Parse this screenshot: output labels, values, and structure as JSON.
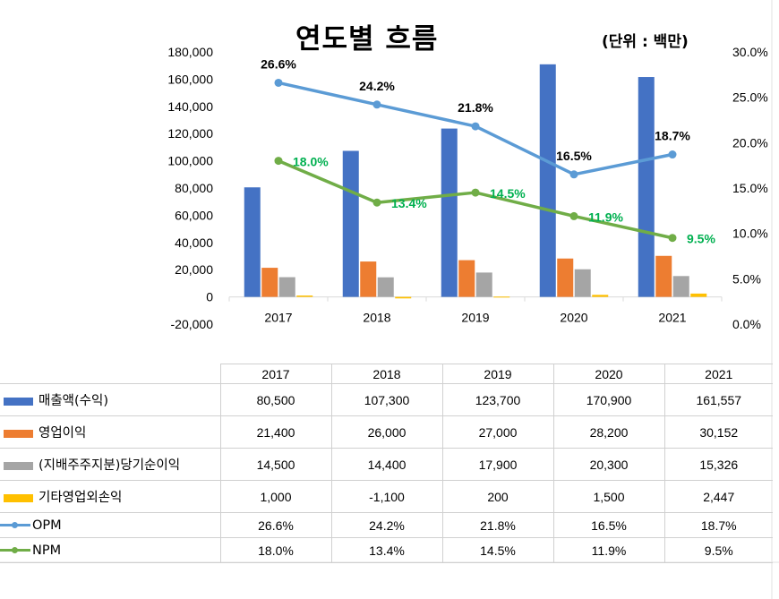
{
  "chart_data": {
    "type": "bar",
    "title": "연도별 흐름",
    "unit_note": "(단위 : 백만)",
    "categories": [
      "2017",
      "2018",
      "2019",
      "2020",
      "2021"
    ],
    "ylim": [
      -20000,
      180000
    ],
    "y_ticks": [
      "-20,000",
      "0",
      "20,000",
      "40,000",
      "60,000",
      "80,000",
      "100,000",
      "120,000",
      "140,000",
      "160,000",
      "180,000"
    ],
    "y2lim": [
      0,
      30
    ],
    "y2_ticks": [
      "0.0%",
      "5.0%",
      "10.0%",
      "15.0%",
      "20.0%",
      "25.0%",
      "30.0%"
    ],
    "series": [
      {
        "name": "매출액(수익)",
        "kind": "bar",
        "color": "#4472C4",
        "values": [
          80500,
          107300,
          123700,
          170900,
          161557
        ]
      },
      {
        "name": "영업이익",
        "kind": "bar",
        "color": "#ED7D31",
        "values": [
          21400,
          26000,
          27000,
          28200,
          30152
        ]
      },
      {
        "name": "(지배주주지분)당기순이익",
        "kind": "bar",
        "color": "#A5A5A5",
        "values": [
          14500,
          14400,
          17900,
          20300,
          15326
        ]
      },
      {
        "name": "기타영업외손익",
        "kind": "bar",
        "color": "#FFC000",
        "values": [
          1000,
          -1100,
          200,
          1500,
          2447
        ]
      },
      {
        "name": "OPM",
        "kind": "line",
        "axis": "right",
        "color": "#5B9BD5",
        "label_color": "#000000",
        "values": [
          26.6,
          24.2,
          21.8,
          16.5,
          18.7
        ]
      },
      {
        "name": "NPM",
        "kind": "line",
        "axis": "right",
        "color": "#70AD47",
        "label_color": "#00B050",
        "values": [
          18.0,
          13.4,
          14.5,
          11.9,
          9.5
        ]
      }
    ]
  },
  "table": {
    "years": [
      "2017",
      "2018",
      "2019",
      "2020",
      "2021"
    ],
    "rows": [
      {
        "label": "매출액(수익)",
        "key": "box",
        "color": "#4472C4",
        "cells": [
          "80,500",
          "107,300",
          "123,700",
          "170,900",
          "161,557"
        ]
      },
      {
        "label": "영업이익",
        "key": "box",
        "color": "#ED7D31",
        "cells": [
          "21,400",
          "26,000",
          "27,000",
          "28,200",
          "30,152"
        ]
      },
      {
        "label": "(지배주주지분)당기순이익",
        "key": "box",
        "color": "#A5A5A5",
        "cells": [
          "14,500",
          "14,400",
          "17,900",
          "20,300",
          "15,326"
        ]
      },
      {
        "label": "기타영업외손익",
        "key": "box",
        "color": "#FFC000",
        "cells": [
          "1,000",
          "-1,100",
          "200",
          "1,500",
          "2,447"
        ]
      },
      {
        "label": "OPM",
        "key": "line",
        "color": "#5B9BD5",
        "cells": [
          "26.6%",
          "24.2%",
          "21.8%",
          "16.5%",
          "18.7%"
        ]
      },
      {
        "label": "NPM",
        "key": "line",
        "color": "#70AD47",
        "cells": [
          "18.0%",
          "13.4%",
          "14.5%",
          "11.9%",
          "9.5%"
        ]
      }
    ]
  }
}
